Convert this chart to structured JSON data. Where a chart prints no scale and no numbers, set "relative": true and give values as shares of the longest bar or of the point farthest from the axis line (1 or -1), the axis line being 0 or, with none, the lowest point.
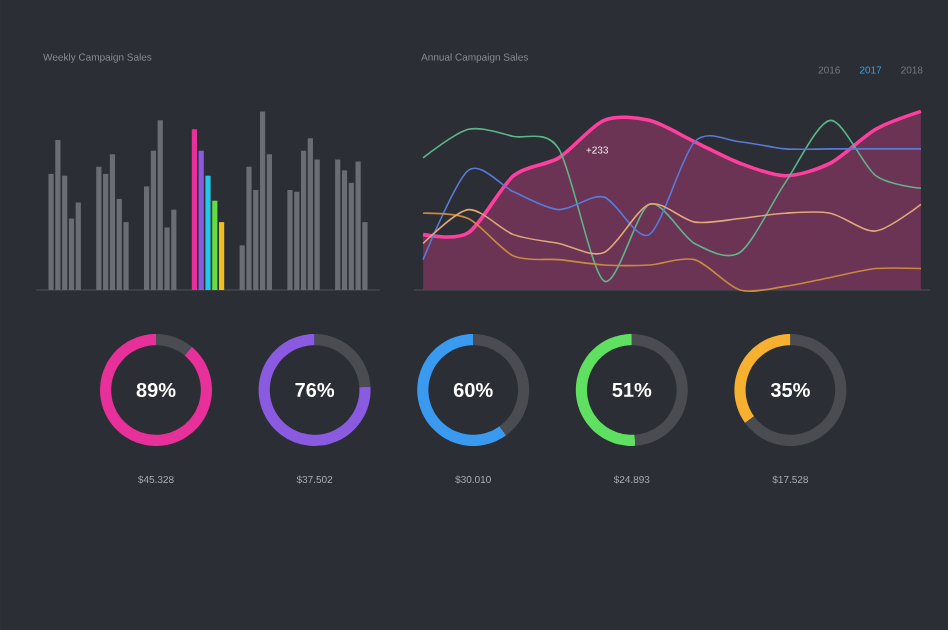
{
  "chart_data": [
    {
      "type": "bar",
      "title": "Weekly Campaign Sales",
      "relative": true,
      "categories": [
        null,
        null,
        null,
        null,
        null,
        null,
        null
      ],
      "series": [
        {
          "colors": [
            "#6a6d73",
            "#6a6d73",
            "#6a6d73",
            "#e8309a",
            "#6a6d73",
            "#6a6d73",
            "#6a6d73"
          ],
          "values": [
            0.65,
            0.69,
            0.58,
            0.9,
            0.25,
            0.56,
            0.73
          ]
        },
        {
          "colors": [
            "#6a6d73",
            "#6a6d73",
            "#6a6d73",
            "#8a5ae0",
            "#6a6d73",
            "#6a6d73",
            "#6a6d73"
          ],
          "values": [
            0.84,
            0.65,
            0.78,
            0.78,
            0.69,
            0.55,
            0.67
          ]
        },
        {
          "colors": [
            "#6a6d73",
            "#6a6d73",
            "#6a6d73",
            "#22c8e8",
            "#6a6d73",
            "#6a6d73",
            "#6a6d73"
          ],
          "values": [
            0.64,
            0.76,
            0.95,
            0.64,
            0.56,
            0.78,
            0.6
          ]
        },
        {
          "colors": [
            "#6a6d73",
            "#6a6d73",
            "#6a6d73",
            "#66dd44",
            "#6a6d73",
            "#6a6d73",
            "#6a6d73"
          ],
          "values": [
            0.4,
            0.51,
            0.35,
            0.5,
            1.0,
            0.85,
            0.72
          ]
        },
        {
          "colors": [
            "#6a6d73",
            "#6a6d73",
            "#6a6d73",
            "#f0c020",
            "#6a6d73",
            "#6a6d73",
            "#6a6d73"
          ],
          "values": [
            0.49,
            0.38,
            0.45,
            0.38,
            0.76,
            0.73,
            0.38
          ]
        }
      ]
    },
    {
      "type": "line",
      "title": "Annual Campaign Sales",
      "relative": true,
      "categories": [
        null,
        null,
        null,
        null,
        null,
        null,
        null,
        null,
        null,
        null,
        null,
        null
      ],
      "annotations": [
        "+233",
        "2016",
        "2017",
        "2018"
      ],
      "series": [
        {
          "type": "area",
          "color": "#ff3fa0",
          "values": [
            0.31,
            0.32,
            0.64,
            0.74,
            0.95,
            0.95,
            0.83,
            0.71,
            0.64,
            0.71,
            0.9,
            1.0
          ]
        },
        {
          "color": "#5fb58a",
          "values": [
            0.74,
            0.9,
            0.86,
            0.79,
            0.05,
            0.48,
            0.26,
            0.21,
            0.6,
            0.95,
            0.64,
            0.57
          ]
        },
        {
          "color": "#5a7ad8",
          "values": [
            0.17,
            0.67,
            0.55,
            0.45,
            0.52,
            0.31,
            0.83,
            0.83,
            0.79,
            0.79,
            0.79,
            0.79
          ]
        },
        {
          "color": "#c88a40",
          "values": [
            0.43,
            0.4,
            0.19,
            0.17,
            0.14,
            0.14,
            0.17,
            0,
            0.02,
            0.07,
            0.12,
            0.12
          ]
        },
        {
          "color": "#e0a878",
          "values": [
            0.26,
            0.45,
            0.31,
            0.26,
            0.21,
            0.48,
            0.38,
            0.4,
            0.43,
            0.43,
            0.33,
            0.48
          ]
        }
      ]
    },
    {
      "type": "donut",
      "title": "89%",
      "categories": [
        null,
        null
      ],
      "values": [
        89,
        11
      ],
      "colors": [
        "#e8309a",
        "#4a4c52"
      ],
      "annotations": [
        "$45.328"
      ]
    },
    {
      "type": "donut",
      "title": "76%",
      "categories": [
        null,
        null
      ],
      "values": [
        76,
        24
      ],
      "colors": [
        "#8a5ae0",
        "#4a4c52"
      ],
      "annotations": [
        "$37.502"
      ]
    },
    {
      "type": "donut",
      "title": "60%",
      "categories": [
        null,
        null
      ],
      "values": [
        60,
        40
      ],
      "colors": [
        "#3a9af0",
        "#4a4c52"
      ],
      "annotations": [
        "$30.010"
      ]
    },
    {
      "type": "donut",
      "title": "51%",
      "categories": [
        null,
        null
      ],
      "values": [
        51,
        49
      ],
      "colors": [
        "#60e060",
        "#4a4c52"
      ],
      "annotations": [
        "$24.893"
      ]
    },
    {
      "type": "donut",
      "title": "35%",
      "categories": [
        null,
        null
      ],
      "values": [
        35,
        65
      ],
      "colors": [
        "#f8b030",
        "#4a4c52"
      ],
      "annotations": [
        "$17.528"
      ]
    }
  ]
}
